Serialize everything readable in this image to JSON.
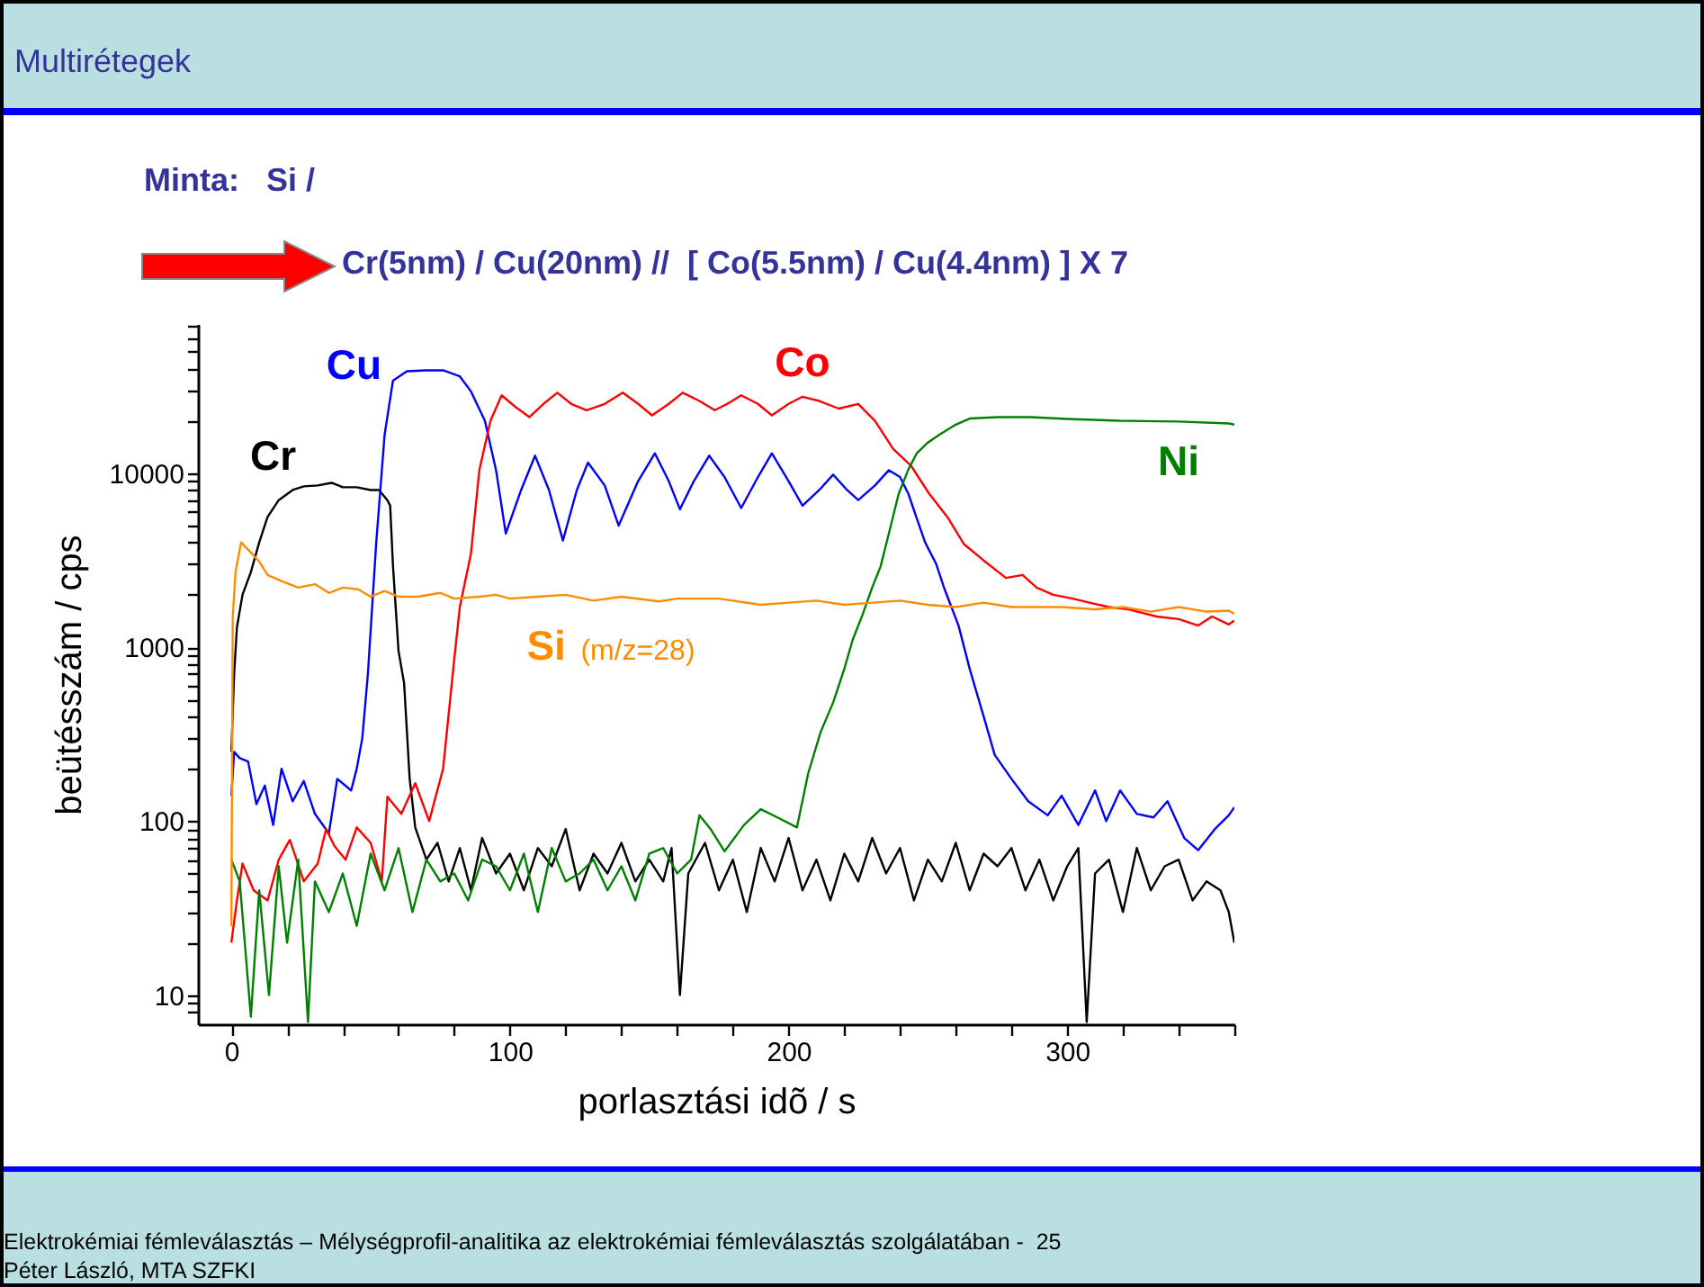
{
  "chart_data": {
    "type": "line",
    "title": "Multirétegek",
    "subtitle": "Minta:   Si /",
    "annotations": [
      "Cr(5nm) / Cu(20nm) //  [ Co(5.5nm) / Cu(4.4nm) ] X 7",
      "Elektrokémiai fémleválasztás – Mélységprofil-analitika az elektrokémiai fémleválasztás szolgálatában -  25",
      "Péter László, MTA SZFKI"
    ],
    "xlabel": "porlasztási idõ / s",
    "ylabel": "beütésszám / cps",
    "xlim": [
      -12,
      360
    ],
    "ylim": [
      6.8,
      72000
    ],
    "log": "y",
    "grid": false,
    "legend": false,
    "xticks": [
      0,
      {
        "value": 20,
        "label": null
      },
      {
        "value": 40,
        "label": null
      },
      {
        "value": 60,
        "label": null
      },
      {
        "value": 80,
        "label": null
      },
      100,
      {
        "value": 120,
        "label": null
      },
      {
        "value": 140,
        "label": null
      },
      {
        "value": 160,
        "label": null
      },
      {
        "value": 180,
        "label": null
      },
      200,
      {
        "value": 220,
        "label": null
      },
      {
        "value": 240,
        "label": null
      },
      {
        "value": 260,
        "label": null
      },
      {
        "value": 280,
        "label": null
      },
      300,
      {
        "value": 320,
        "label": null
      },
      {
        "value": 340,
        "label": null
      },
      {
        "value": 360,
        "label": null
      }
    ],
    "yticks": [
      {
        "value": 8,
        "label": null
      },
      {
        "value": 9,
        "label": null
      },
      10,
      {
        "value": 20,
        "label": null
      },
      {
        "value": 30,
        "label": null
      },
      {
        "value": 40,
        "label": null
      },
      {
        "value": 50,
        "label": null
      },
      {
        "value": 60,
        "label": null
      },
      {
        "value": 70,
        "label": null
      },
      {
        "value": 80,
        "label": null
      },
      {
        "value": 90,
        "label": null
      },
      100,
      {
        "value": 200,
        "label": null
      },
      {
        "value": 300,
        "label": null
      },
      {
        "value": 400,
        "label": null
      },
      {
        "value": 500,
        "label": null
      },
      {
        "value": 600,
        "label": null
      },
      {
        "value": 700,
        "label": null
      },
      {
        "value": 800,
        "label": null
      },
      {
        "value": 900,
        "label": null
      },
      1000,
      {
        "value": 2000,
        "label": null
      },
      {
        "value": 3000,
        "label": null
      },
      {
        "value": 4000,
        "label": null
      },
      {
        "value": 5000,
        "label": null
      },
      {
        "value": 6000,
        "label": null
      },
      {
        "value": 7000,
        "label": null
      },
      {
        "value": 8000,
        "label": null
      },
      {
        "value": 9000,
        "label": null
      },
      10000,
      {
        "value": 20000,
        "label": null
      },
      {
        "value": 30000,
        "label": null
      },
      {
        "value": 40000,
        "label": null
      },
      {
        "value": 50000,
        "label": null
      },
      {
        "value": 60000,
        "label": null
      },
      {
        "value": 70000,
        "label": null
      }
    ],
    "series": [
      {
        "name": "Cr",
        "color": "#000000",
        "x": [
          0,
          1,
          2,
          4,
          7,
          10,
          13,
          17,
          22,
          26,
          31,
          36,
          40,
          45,
          50,
          53,
          56,
          57,
          58,
          60,
          62,
          64,
          66,
          70,
          74,
          78,
          82,
          86,
          90,
          95,
          100,
          105,
          110,
          115,
          120,
          125,
          130,
          135,
          140,
          145,
          150,
          155,
          158,
          161,
          164,
          170,
          175,
          180,
          185,
          190,
          195,
          200,
          205,
          210,
          215,
          220,
          225,
          230,
          235,
          240,
          245,
          250,
          255,
          260,
          265,
          270,
          275,
          280,
          285,
          290,
          295,
          300,
          304,
          307,
          310,
          315,
          320,
          325,
          330,
          335,
          340,
          345,
          350,
          355,
          358,
          360
        ],
        "values": [
          250,
          700,
          1300,
          2000,
          2700,
          4000,
          5600,
          7000,
          8000,
          8400,
          8500,
          8800,
          8300,
          8300,
          8000,
          8000,
          7000,
          6500,
          2950,
          950,
          620,
          175,
          92,
          60,
          75,
          45,
          70,
          40,
          80,
          50,
          65,
          40,
          70,
          55,
          90,
          40,
          65,
          50,
          75,
          45,
          60,
          45,
          70,
          10,
          50,
          75,
          40,
          60,
          30,
          70,
          45,
          80,
          40,
          60,
          35,
          65,
          45,
          80,
          50,
          70,
          35,
          60,
          45,
          75,
          40,
          65,
          55,
          70,
          40,
          60,
          35,
          55,
          70,
          7,
          50,
          60,
          30,
          70,
          40,
          55,
          60,
          35,
          45,
          40,
          30,
          20
        ]
      },
      {
        "name": "Cu",
        "color": "#0000ff",
        "x": [
          0,
          1,
          3,
          6,
          9,
          12,
          15,
          18,
          22,
          26,
          30,
          35,
          38,
          43,
          45,
          47,
          49,
          52,
          55,
          58,
          63,
          70,
          76,
          82,
          86,
          91,
          95,
          98.5,
          104,
          109,
          114,
          119,
          124,
          128,
          134,
          139,
          146,
          152,
          157,
          161,
          166,
          171.5,
          177,
          183,
          189,
          194,
          200,
          205,
          211,
          216,
          221,
          225,
          231,
          236,
          240,
          243,
          246,
          249,
          253,
          256,
          261,
          265,
          270,
          274,
          280,
          286,
          293,
          298,
          304,
          310,
          314,
          319,
          325,
          331,
          336,
          342,
          347,
          353,
          358,
          360
        ],
        "values": [
          140,
          250,
          230,
          220,
          125,
          160,
          95,
          200,
          130,
          170,
          110,
          85,
          175,
          150,
          200,
          300,
          700,
          4000,
          16600,
          34000,
          38500,
          39000,
          39000,
          36000,
          29500,
          20000,
          10400,
          4500,
          8000,
          12600,
          8000,
          4100,
          8000,
          11500,
          8500,
          5000,
          9000,
          13000,
          9000,
          6200,
          9000,
          12600,
          9500,
          6300,
          9500,
          13000,
          9000,
          6500,
          8000,
          9800,
          8000,
          7000,
          8500,
          10400,
          9500,
          7600,
          5500,
          4000,
          3000,
          2150,
          1330,
          750,
          400,
          240,
          175,
          130,
          108,
          140,
          95,
          150,
          100,
          150,
          110,
          105,
          130,
          80,
          68,
          90,
          108,
          120
        ]
      },
      {
        "name": "Co",
        "color": "#ff0000",
        "x": [
          0,
          2,
          4,
          8,
          13,
          17,
          21,
          26,
          31,
          34,
          37,
          41,
          45,
          50,
          54,
          56,
          61,
          66,
          71,
          76,
          80,
          82,
          86,
          89,
          93,
          97,
          102,
          107,
          112,
          117,
          122,
          127.5,
          134,
          140.5,
          146,
          151,
          157,
          162,
          168,
          173.5,
          178,
          183,
          189,
          194,
          200,
          205,
          211,
          218,
          225,
          231,
          237.5,
          244,
          250.5,
          257,
          263,
          270,
          278,
          284,
          289,
          295,
          302,
          308,
          315,
          322,
          332,
          340,
          347,
          352,
          358,
          360
        ],
        "values": [
          20,
          35,
          57,
          40,
          35,
          60,
          78,
          45,
          57,
          90,
          72,
          60,
          92,
          75,
          45,
          138,
          110,
          165,
          100,
          200,
          850,
          1700,
          3450,
          10400,
          20000,
          28000,
          24000,
          21000,
          25000,
          29000,
          25000,
          23000,
          25000,
          29000,
          25000,
          21500,
          25000,
          29000,
          26000,
          23000,
          25000,
          28000,
          25000,
          21500,
          25000,
          27500,
          26000,
          23500,
          25000,
          20000,
          13800,
          11000,
          7600,
          5600,
          3900,
          3150,
          2500,
          2600,
          2200,
          2000,
          1900,
          1800,
          1700,
          1650,
          1500,
          1450,
          1330,
          1500,
          1350,
          1420
        ]
      },
      {
        "name": "Ni",
        "color": "#008000",
        "x": [
          0,
          3,
          7,
          10,
          13.5,
          17,
          20,
          24,
          27.5,
          30,
          35,
          40,
          45,
          50,
          55,
          60,
          65,
          70,
          75,
          80,
          85,
          90,
          95,
          100,
          105,
          110,
          115,
          120,
          125,
          130,
          135,
          140,
          145,
          150,
          155,
          160,
          165,
          168,
          172,
          177,
          184,
          190,
          196,
          203,
          207,
          211.5,
          216,
          220,
          223,
          226.5,
          230,
          233,
          236,
          239.5,
          243,
          246,
          250,
          254,
          260,
          265,
          275,
          287,
          300,
          319,
          340,
          358,
          360
        ],
        "values": [
          60,
          45,
          7.5,
          40,
          10,
          55,
          20,
          60,
          7,
          45,
          30,
          50,
          25,
          65,
          40,
          70,
          30,
          60,
          45,
          50,
          35,
          60,
          55,
          40,
          65,
          30,
          70,
          45,
          50,
          60,
          40,
          55,
          35,
          65,
          70,
          50,
          60,
          108,
          90,
          67,
          95,
          117,
          105,
          92,
          187,
          325,
          480,
          750,
          1100,
          1530,
          2200,
          2900,
          4500,
          7600,
          10500,
          13000,
          15000,
          16600,
          19000,
          20600,
          21000,
          21000,
          20500,
          20000,
          19800,
          19300,
          19000
        ]
      },
      {
        "name": "Si (m/z=28)",
        "color": "#ff8c00",
        "x": [
          0,
          0.5,
          1.5,
          3.5,
          7,
          10,
          13,
          18,
          24,
          30,
          35,
          40,
          45.5,
          50,
          55,
          60,
          67,
          75,
          80,
          89,
          95,
          100,
          110,
          120,
          130,
          140,
          153.5,
          160,
          175,
          190,
          200,
          210,
          220,
          230,
          240,
          250,
          260,
          270,
          280,
          298,
          310,
          320,
          330,
          340,
          350,
          358,
          360
        ],
        "values": [
          25,
          1500,
          2700,
          4000,
          3500,
          3100,
          2600,
          2400,
          2200,
          2300,
          2050,
          2200,
          2150,
          1950,
          2100,
          1950,
          1950,
          2050,
          1900,
          1950,
          2000,
          1900,
          1950,
          2000,
          1850,
          1950,
          1830,
          1900,
          1900,
          1750,
          1800,
          1850,
          1750,
          1800,
          1850,
          1750,
          1700,
          1800,
          1700,
          1700,
          1650,
          1700,
          1600,
          1700,
          1600,
          1620,
          1550
        ]
      }
    ]
  }
}
